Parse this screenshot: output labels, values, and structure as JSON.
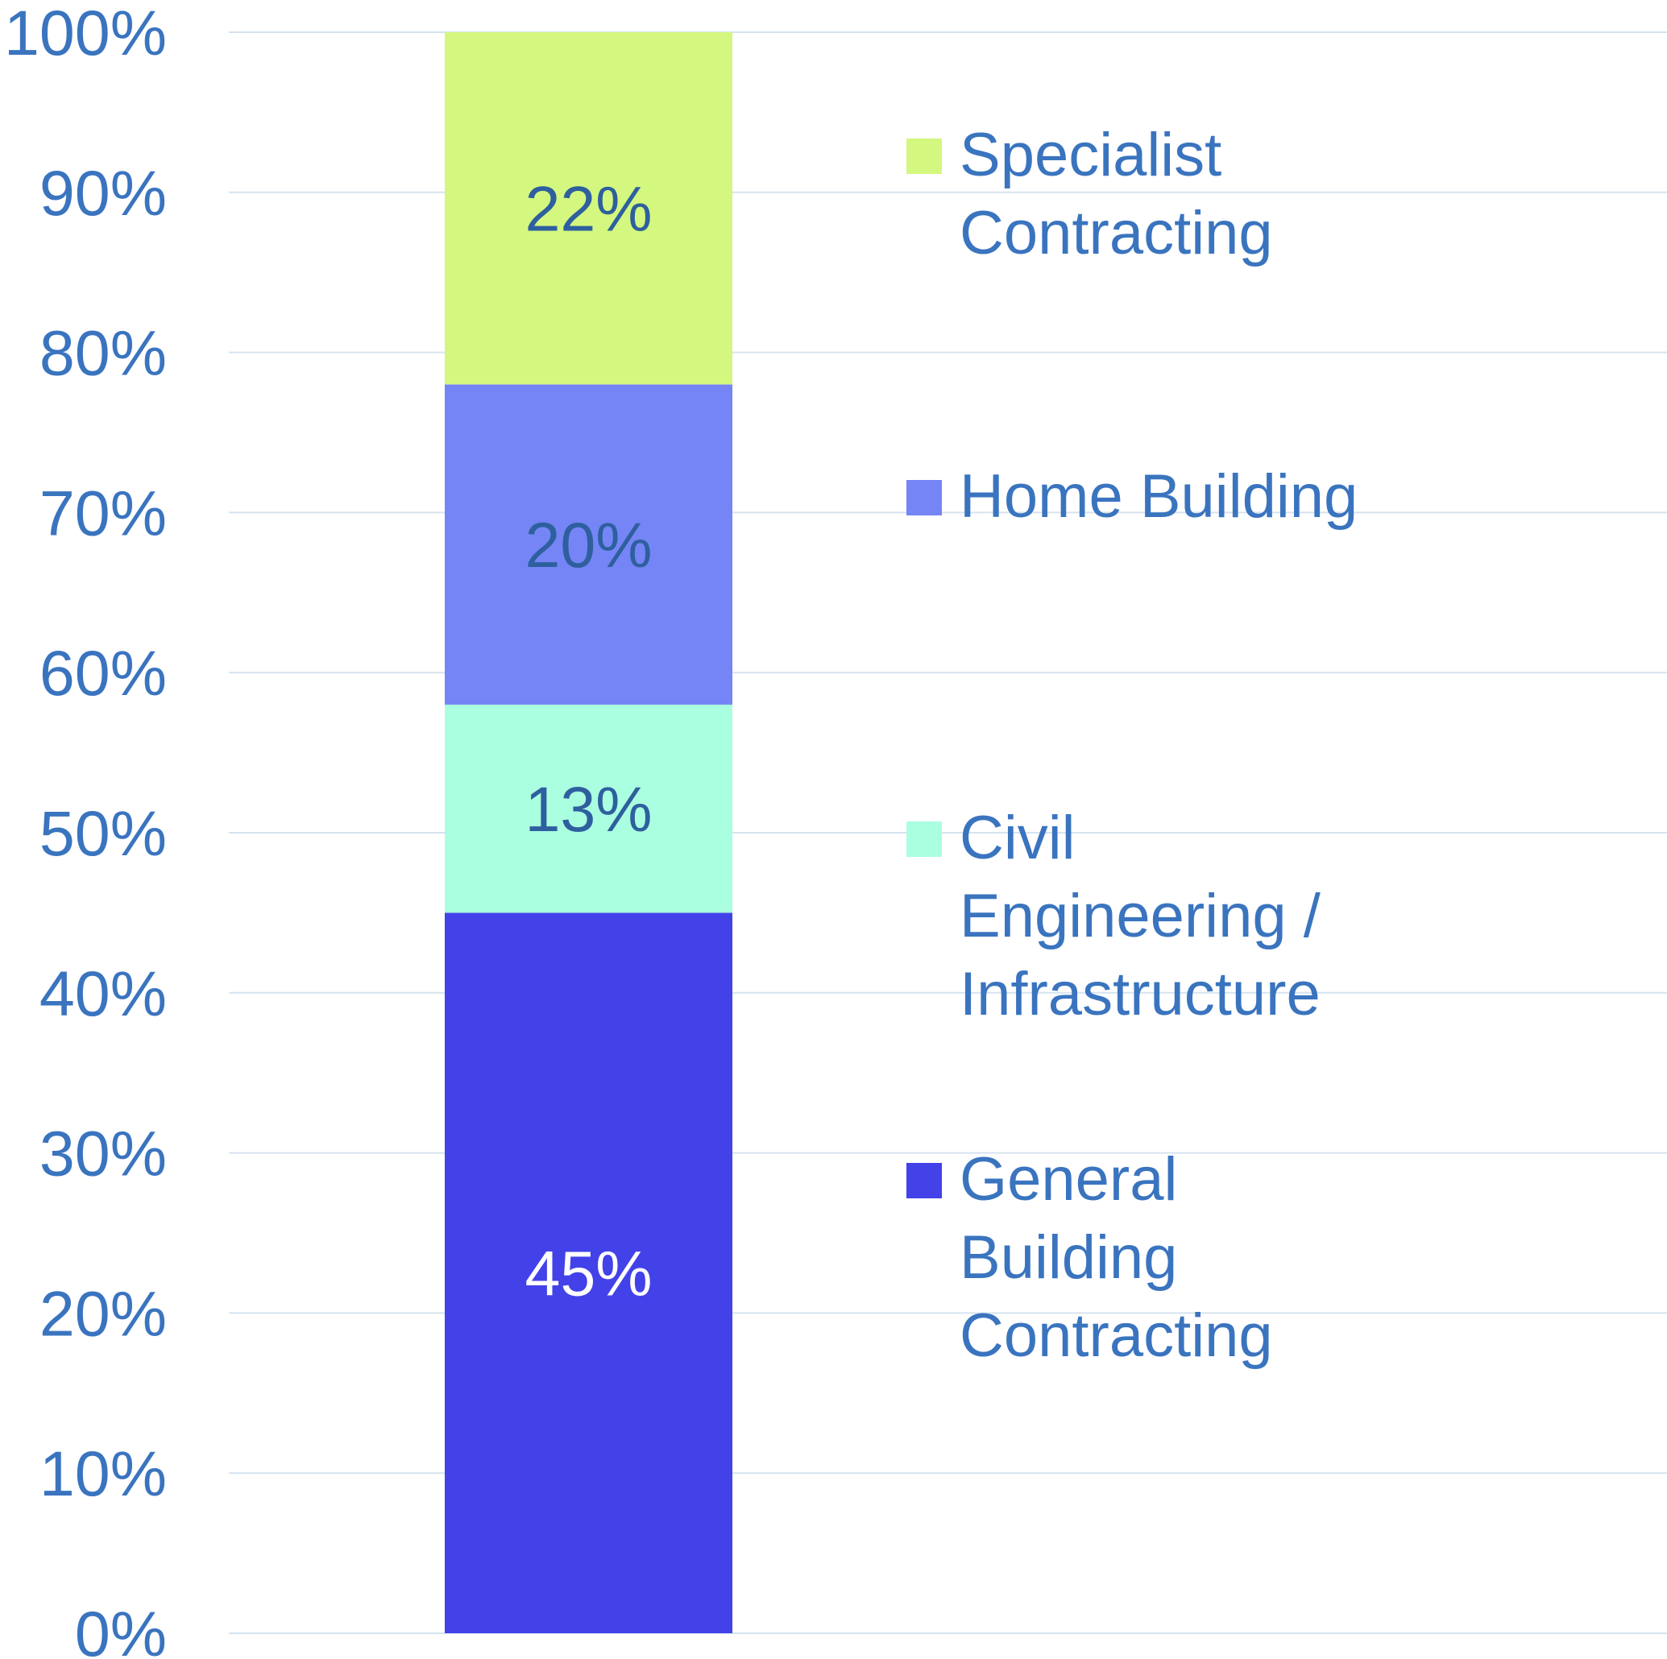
{
  "chart_data": {
    "type": "stacked_bar",
    "categories": [
      null
    ],
    "series": [
      {
        "name": "General Building Contracting",
        "color": "#4242e8",
        "label_color": "#ffffff",
        "values": [
          45
        ],
        "value_labels": [
          "45%"
        ]
      },
      {
        "name": "Civil Engineering / Infrastructure",
        "color": "#aaffe0",
        "label_color": "#2e5f9e",
        "values": [
          13
        ],
        "value_labels": [
          "13%"
        ]
      },
      {
        "name": "Home Building",
        "color": "#7585f5",
        "label_color": "#2e5f9e",
        "values": [
          20
        ],
        "value_labels": [
          "20%"
        ]
      },
      {
        "name": "Specialist Contracting",
        "color": "#d4f77f",
        "label_color": "#2e5f9e",
        "values": [
          22
        ],
        "value_labels": [
          "22%"
        ]
      }
    ],
    "ylim": [
      0,
      100
    ],
    "yticks": [
      {
        "value": 0,
        "label": "0%"
      },
      {
        "value": 10,
        "label": "10%"
      },
      {
        "value": 20,
        "label": "20%"
      },
      {
        "value": 30,
        "label": "30%"
      },
      {
        "value": 40,
        "label": "40%"
      },
      {
        "value": 50,
        "label": "50%"
      },
      {
        "value": 60,
        "label": "60%"
      },
      {
        "value": 70,
        "label": "70%"
      },
      {
        "value": 80,
        "label": "80%"
      },
      {
        "value": 90,
        "label": "90%"
      },
      {
        "value": 100,
        "label": "100%"
      }
    ],
    "grid": true,
    "legend": "right"
  }
}
